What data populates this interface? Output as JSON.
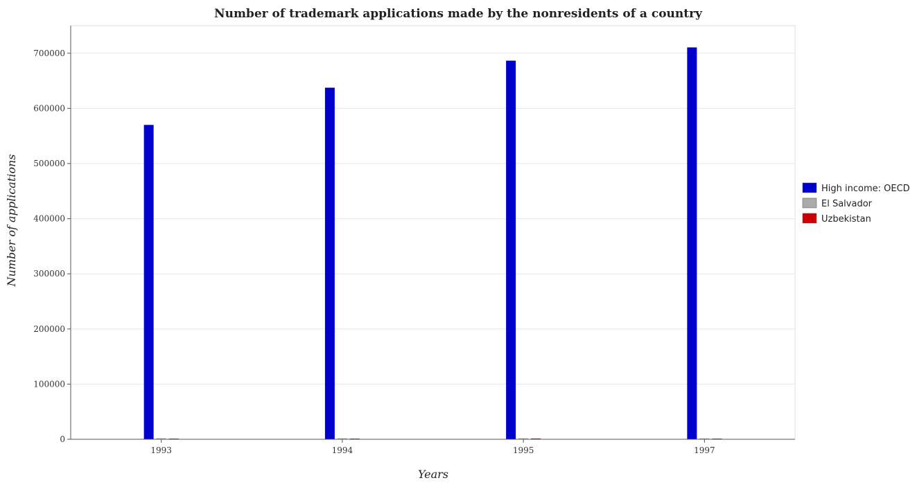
{
  "chart_data": {
    "type": "bar",
    "title": "Number of trademark applications made by the nonresidents of a country",
    "xlabel": "Years",
    "ylabel": "Number of applications",
    "categories": [
      "1993",
      "1994",
      "1995",
      "1997"
    ],
    "ylim": [
      0,
      750000
    ],
    "yticks": [
      0,
      100000,
      200000,
      300000,
      400000,
      500000,
      600000,
      700000
    ],
    "ytick_labels": [
      "0",
      "100000",
      "200000",
      "300000",
      "400000",
      "500000",
      "600000",
      "700000"
    ],
    "grid": true,
    "legend_position": "right",
    "series": [
      {
        "name": "High income: OECD",
        "color": "#0000cc",
        "values": [
          570000,
          637500,
          686500,
          710500
        ]
      },
      {
        "name": "El Salvador",
        "color": "#aaaaaa",
        "values": [
          1900,
          1800,
          1800,
          1700
        ]
      },
      {
        "name": "Uzbekistan",
        "color": "#cc0000",
        "values": [
          700,
          900,
          1500,
          600
        ]
      }
    ]
  }
}
